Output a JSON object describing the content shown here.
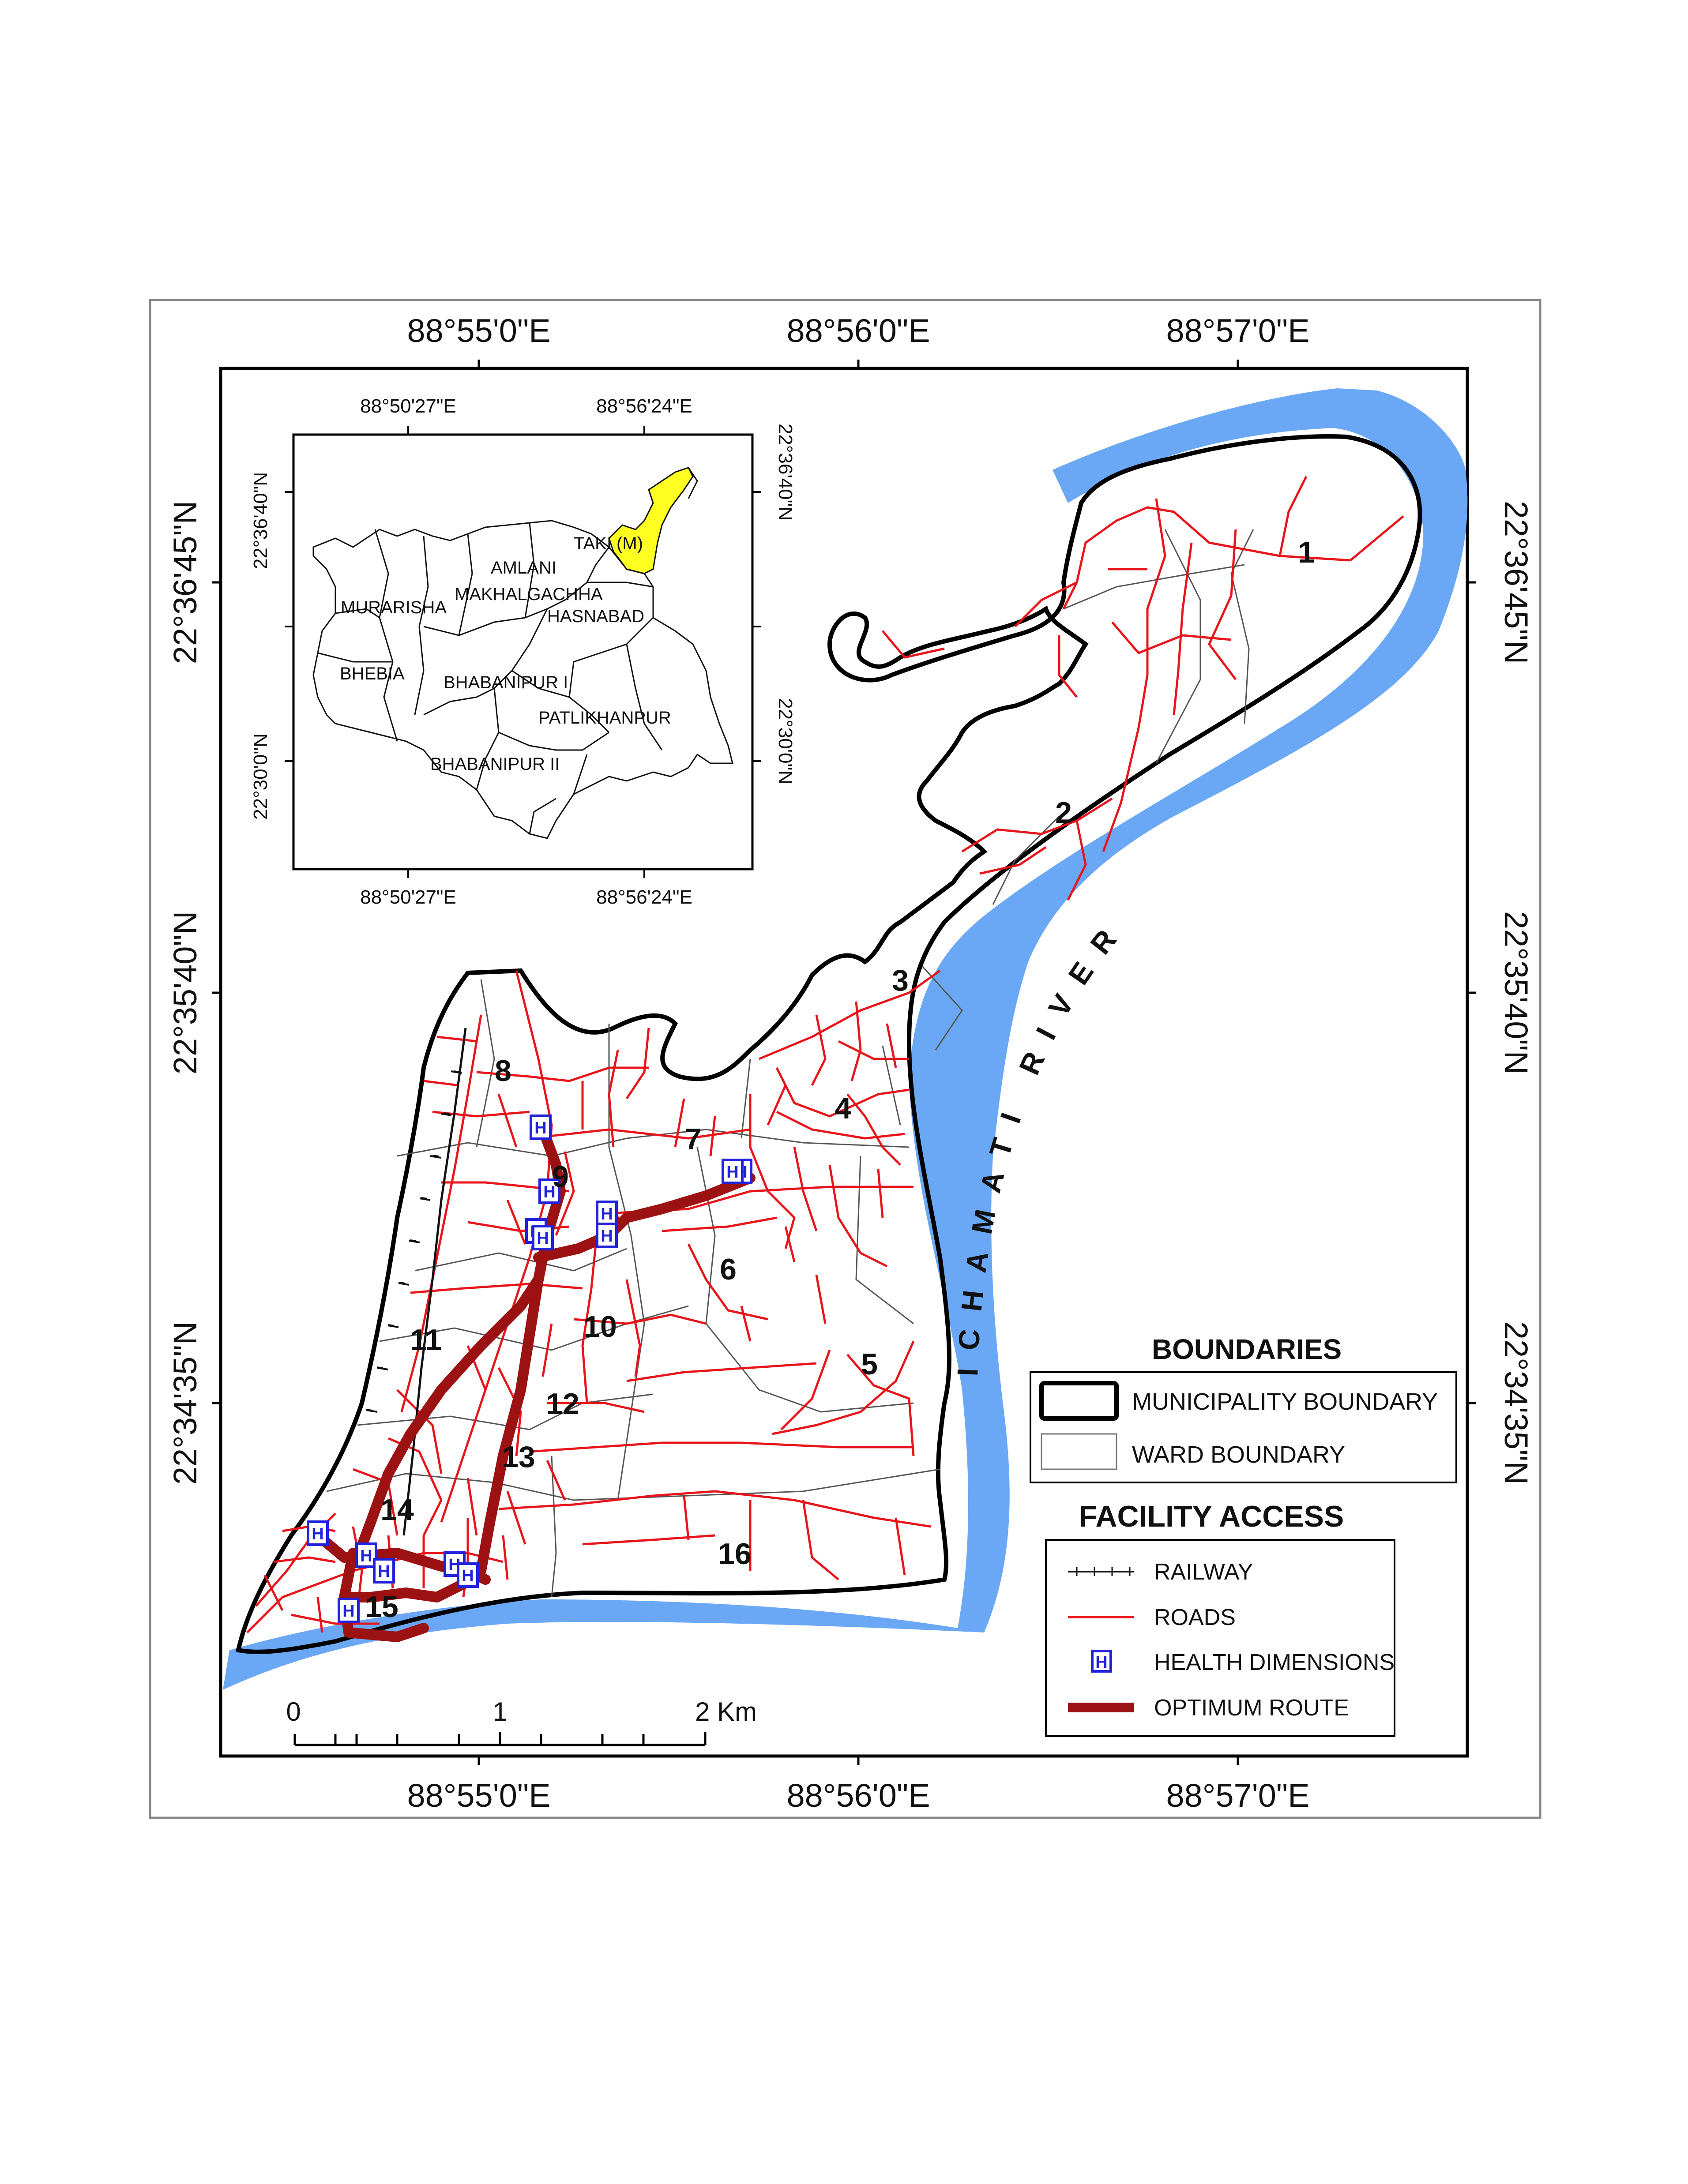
{
  "colors": {
    "river": "#6aa8f5",
    "roads": "#e8141a",
    "route": "#9c1111",
    "health": "#2222dd",
    "highlight": "#ffff22",
    "boundary": "#000000",
    "ward_boundary": "#555555"
  },
  "frame": {
    "top_labels": [
      "88°55'0\"E",
      "88°56'0\"E",
      "88°57'0\"E"
    ],
    "bottom_labels": [
      "88°55'0\"E",
      "88°56'0\"E",
      "88°57'0\"E"
    ],
    "left_labels": [
      "22°36'45\"N",
      "22°35'40\"N",
      "22°34'35\"N"
    ],
    "right_labels": [
      "22°36'45\"N",
      "22°35'40\"N",
      "22°34'35\"N"
    ]
  },
  "inset": {
    "top_labels": [
      "88°50'27\"E",
      "88°56'24\"E"
    ],
    "bottom_labels": [
      "88°50'27\"E",
      "88°56'24\"E"
    ],
    "left_labels": [
      "22°36'40\"N",
      "22°30'0\"N"
    ],
    "right_labels": [
      "22°36'40\"N",
      "22°30'0\"N"
    ],
    "places": [
      "TAKI (M)",
      "AMLANI",
      "MAKHALGACHHA",
      "MURARISHA",
      "HASNABAD",
      "BHEBIA",
      "BHABANIPUR I",
      "PATLIKHANPUR",
      "BHABANIPUR II"
    ]
  },
  "wards": [
    "1",
    "2",
    "3",
    "4",
    "5",
    "6",
    "7",
    "8",
    "9",
    "10",
    "11",
    "12",
    "13",
    "14",
    "15",
    "16"
  ],
  "river_label": "ICHAMATI RIVER",
  "scale_bar": {
    "labels": [
      "0",
      "1",
      "2 Km"
    ]
  },
  "legend": {
    "boundaries_title": "BOUNDARIES",
    "municipality_boundary": "MUNICIPALITY BOUNDARY",
    "ward_boundary": "WARD BOUNDARY",
    "facility_title": "FACILITY ACCESS",
    "railway": "RAILWAY",
    "roads": "ROADS",
    "health": "HEALTH DIMENSIONS",
    "route": "OPTIMUM ROUTE",
    "health_symbol": "H"
  }
}
